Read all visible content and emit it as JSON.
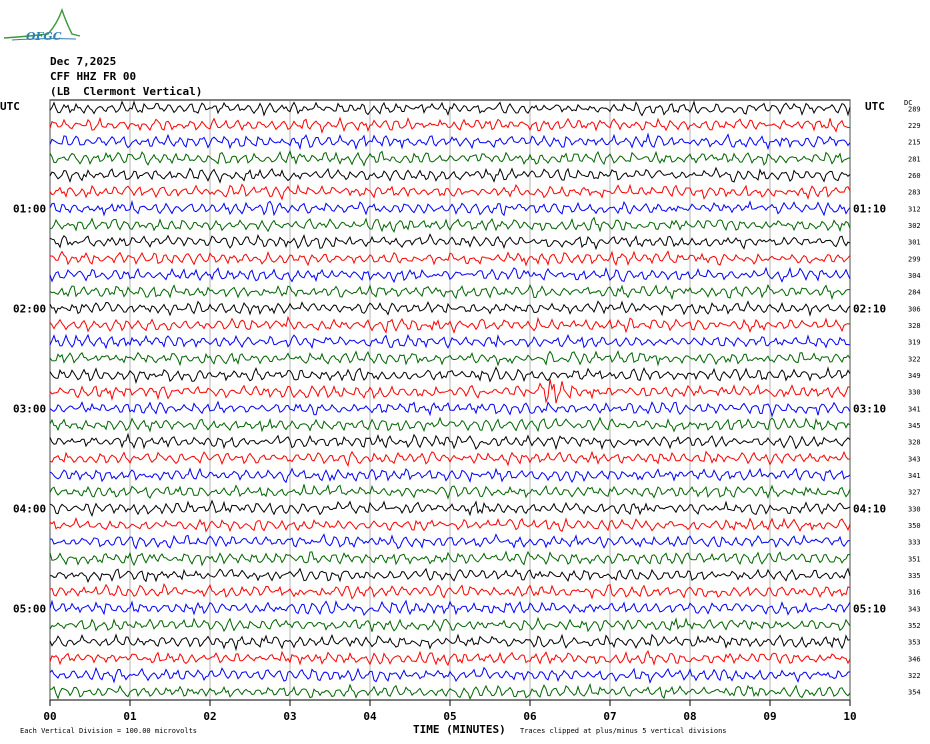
{
  "header": {
    "logo_text": "OFGC",
    "date": "Dec 7,2025",
    "station": "CFF HHZ FR 00",
    "location": "(LB  Clermont Vertical)"
  },
  "footer": {
    "scale_text": "Each Vertical Division =  100.00 microvolts",
    "clip_text": "Traces clipped at plus/minus 5 vertical divisions"
  },
  "colors": {
    "cycle": [
      "#000000",
      "#ff0000",
      "#0000ff",
      "#006400"
    ],
    "grid": "#808080"
  },
  "chart_data": {
    "type": "line",
    "title": "",
    "xlabel": "TIME (MINUTES)",
    "x_ticks": [
      "00",
      "01",
      "02",
      "03",
      "04",
      "05",
      "06",
      "07",
      "08",
      "09",
      "10"
    ],
    "xlim": [
      0,
      10
    ],
    "left_label": "UTC",
    "right_label": "UTC",
    "dc_label": "DC",
    "left_hour_labels": [
      {
        "row": 6,
        "text": "01:00"
      },
      {
        "row": 12,
        "text": "02:00"
      },
      {
        "row": 18,
        "text": "03:00"
      },
      {
        "row": 24,
        "text": "04:00"
      },
      {
        "row": 30,
        "text": "05:00"
      }
    ],
    "right_hour_labels": [
      {
        "row": 6,
        "text": "01:10"
      },
      {
        "row": 12,
        "text": "02:10"
      },
      {
        "row": 18,
        "text": "03:10"
      },
      {
        "row": 24,
        "text": "04:10"
      },
      {
        "row": 30,
        "text": "05:10"
      }
    ],
    "dc_values": [
      "289",
      "229",
      "215",
      "281",
      "260",
      "283",
      "312",
      "302",
      "301",
      "299",
      "304",
      "284",
      "306",
      "328",
      "319",
      "322",
      "349",
      "330",
      "341",
      "345",
      "328",
      "343",
      "341",
      "327",
      "330",
      "350",
      "333",
      "351",
      "335",
      "316",
      "343",
      "352",
      "353",
      "346",
      "322",
      "354"
    ],
    "event": {
      "row": 17,
      "x_start": 6.05,
      "x_end": 6.55
    }
  }
}
